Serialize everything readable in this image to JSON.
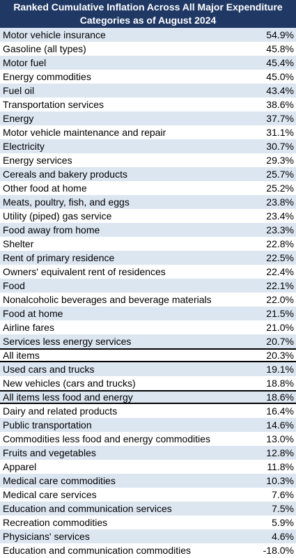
{
  "header": {
    "title_line1": "Ranked Cumulative Inflation Across All Major Expenditure",
    "title_line2": "Categories as of August 2024"
  },
  "table": {
    "highlighted_rows": [
      23,
      26
    ],
    "rows": [
      [
        "Motor vehicle insurance",
        "54.9%"
      ],
      [
        "Gasoline (all types)",
        "45.8%"
      ],
      [
        "Motor fuel",
        "45.4%"
      ],
      [
        "Energy commodities",
        "45.0%"
      ],
      [
        "Fuel oil",
        "43.4%"
      ],
      [
        "Transportation services",
        "38.6%"
      ],
      [
        "Energy",
        "37.7%"
      ],
      [
        "Motor vehicle maintenance and repair",
        "31.1%"
      ],
      [
        "Electricity",
        "30.7%"
      ],
      [
        "Energy services",
        "29.3%"
      ],
      [
        "Cereals and bakery products",
        "25.7%"
      ],
      [
        "Other food at home",
        "25.2%"
      ],
      [
        "Meats, poultry, fish, and eggs",
        "23.8%"
      ],
      [
        "Utility (piped) gas service",
        "23.4%"
      ],
      [
        "Food away from home",
        "23.3%"
      ],
      [
        "Shelter",
        "22.8%"
      ],
      [
        "Rent of primary residence",
        "22.5%"
      ],
      [
        "Owners' equivalent rent of residences",
        "22.4%"
      ],
      [
        "Food",
        "22.1%"
      ],
      [
        "Nonalcoholic beverages and beverage materials",
        "22.0%"
      ],
      [
        "Food at home",
        "21.5%"
      ],
      [
        "Airline fares",
        "21.0%"
      ],
      [
        "Services less energy services",
        "20.7%"
      ],
      [
        "All items",
        "20.3%"
      ],
      [
        "Used cars and trucks",
        "19.1%"
      ],
      [
        "New vehicles (cars and trucks)",
        "18.8%"
      ],
      [
        "All items less food and energy",
        "18.6%"
      ],
      [
        "Dairy and related products",
        "16.4%"
      ],
      [
        "Public transportation",
        "14.6%"
      ],
      [
        "Commodities less food and energy commodities",
        "13.0%"
      ],
      [
        "Fruits and vegetables",
        "12.8%"
      ],
      [
        "Apparel",
        "11.8%"
      ],
      [
        "Medical care commodities",
        "10.3%"
      ],
      [
        "Medical care services",
        "7.6%"
      ],
      [
        "Education and communication services",
        "7.5%"
      ],
      [
        "Recreation commodities",
        "5.9%"
      ],
      [
        "Physicians' services",
        "4.6%"
      ],
      [
        "Education and communication commodities",
        "-18.0%"
      ]
    ]
  }
}
